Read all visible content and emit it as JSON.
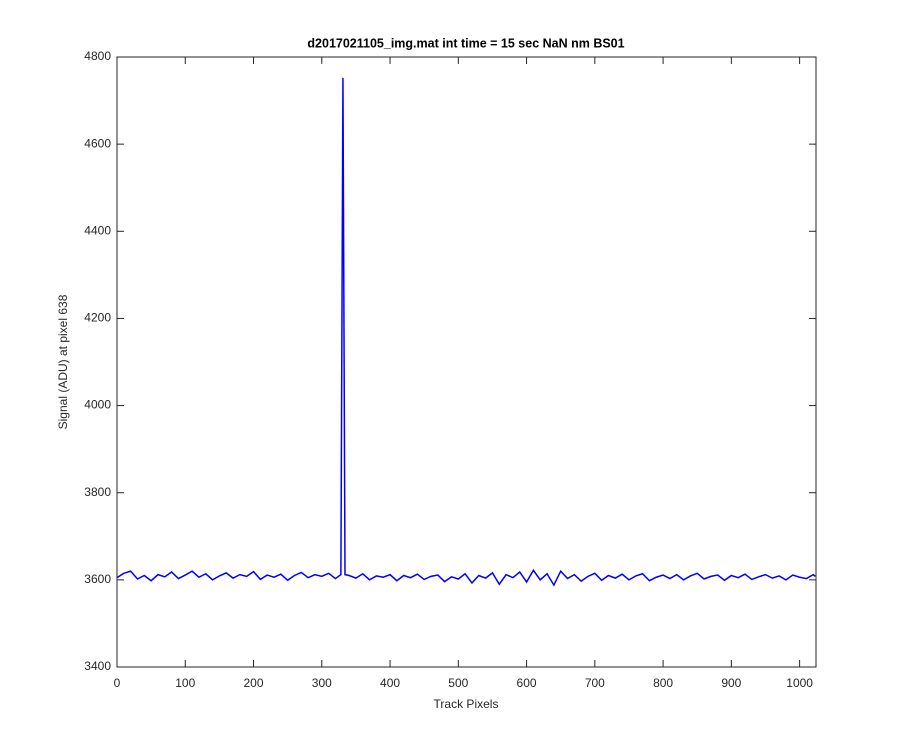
{
  "chart_data": {
    "type": "line",
    "title": "d2017021105_img.mat int time = 15 sec  NaN nm BS01",
    "x_label": "Track Pixels",
    "y_label": "Signal (ADU) at pixel 638",
    "x": [
      0,
      10,
      20,
      30,
      40,
      50,
      60,
      70,
      80,
      90,
      100,
      110,
      120,
      130,
      140,
      150,
      160,
      170,
      180,
      190,
      200,
      210,
      220,
      230,
      240,
      250,
      260,
      270,
      280,
      290,
      300,
      310,
      320,
      328,
      331,
      334,
      340,
      350,
      360,
      370,
      380,
      390,
      400,
      410,
      420,
      430,
      440,
      450,
      460,
      470,
      480,
      490,
      500,
      510,
      520,
      530,
      540,
      550,
      560,
      570,
      580,
      590,
      600,
      610,
      620,
      630,
      640,
      650,
      660,
      670,
      680,
      690,
      700,
      710,
      720,
      730,
      740,
      750,
      760,
      770,
      780,
      790,
      800,
      810,
      820,
      830,
      840,
      850,
      860,
      870,
      880,
      890,
      900,
      910,
      920,
      930,
      940,
      950,
      960,
      970,
      980,
      990,
      1000,
      1010,
      1020,
      1023
    ],
    "series": [
      {
        "name": "signal",
        "color": "#0000ff",
        "values": [
          3605,
          3615,
          3620,
          3602,
          3610,
          3598,
          3612,
          3607,
          3618,
          3603,
          3611,
          3620,
          3606,
          3614,
          3600,
          3609,
          3616,
          3604,
          3612,
          3608,
          3619,
          3601,
          3611,
          3606,
          3613,
          3599,
          3610,
          3617,
          3605,
          3612,
          3608,
          3615,
          3603,
          3612,
          4752,
          3612,
          3610,
          3604,
          3614,
          3600,
          3609,
          3606,
          3612,
          3598,
          3610,
          3605,
          3613,
          3601,
          3608,
          3611,
          3596,
          3607,
          3602,
          3614,
          3593,
          3610,
          3604,
          3616,
          3590,
          3612,
          3605,
          3618,
          3595,
          3622,
          3600,
          3614,
          3588,
          3620,
          3603,
          3612,
          3597,
          3608,
          3615,
          3599,
          3610,
          3604,
          3613,
          3600,
          3609,
          3614,
          3598,
          3606,
          3611,
          3603,
          3612,
          3600,
          3609,
          3615,
          3602,
          3608,
          3611,
          3599,
          3610,
          3605,
          3613,
          3601,
          3607,
          3612,
          3604,
          3609,
          3600,
          3611,
          3606,
          3603,
          3612,
          3608
        ]
      }
    ],
    "xlim": [
      0,
      1024
    ],
    "ylim": [
      3400,
      4800
    ],
    "xticks": [
      0,
      100,
      200,
      300,
      400,
      500,
      600,
      700,
      800,
      900,
      1000
    ],
    "yticks": [
      3400,
      3600,
      3800,
      4000,
      4200,
      4400,
      4600,
      4800
    ]
  }
}
